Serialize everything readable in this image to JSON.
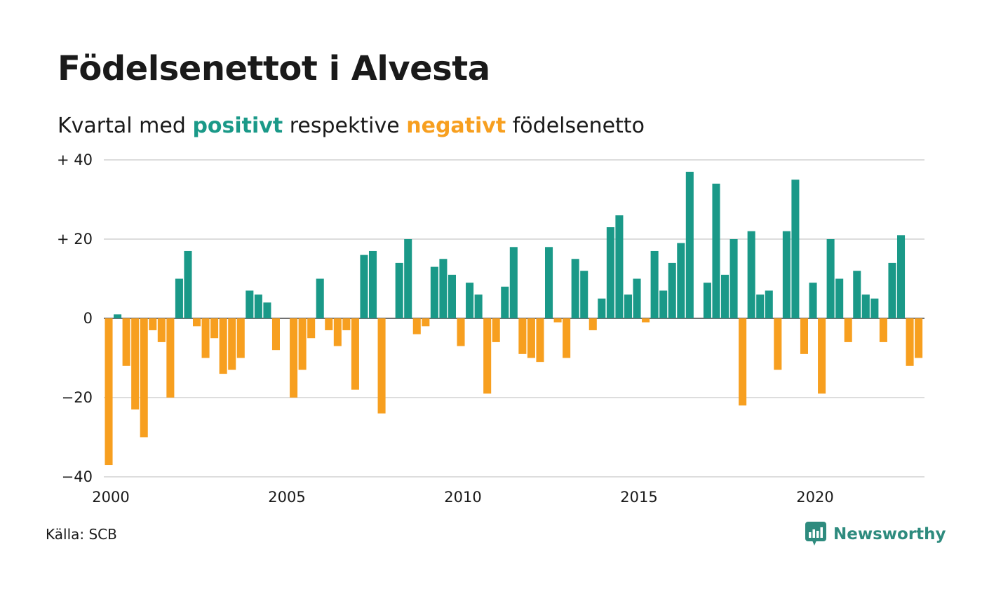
{
  "title": "Födelsenettot i Alvesta",
  "subtitle": {
    "prefix": "Kvartal med",
    "positive_word": "positivt",
    "middle": "respektive",
    "negative_word": "negativt",
    "suffix": "födelsenetto"
  },
  "colors": {
    "positive": "#1a9988",
    "negative": "#f79f1f",
    "grid": "#dddddd",
    "text": "#1a1a1a",
    "brand": "#2e8b7e"
  },
  "source": "Källa: SCB",
  "brand": {
    "name": "Newsworthy",
    "icon": "newsworthy-logo-icon"
  },
  "chart_data": {
    "type": "bar",
    "ylim": [
      -40,
      40
    ],
    "y_ticks": [
      {
        "value": 40,
        "label": "+ 40"
      },
      {
        "value": 20,
        "label": "+ 20"
      },
      {
        "value": 0,
        "label": "0"
      },
      {
        "value": -20,
        "label": "−20"
      },
      {
        "value": -40,
        "label": "−40"
      }
    ],
    "x_ticks": [
      {
        "value": 2000,
        "label": "2000"
      },
      {
        "value": 2005,
        "label": "2005"
      },
      {
        "value": 2010,
        "label": "2010"
      },
      {
        "value": 2015,
        "label": "2015"
      },
      {
        "value": 2020,
        "label": "2020"
      }
    ],
    "start_quarter": "2000-Q1",
    "grid": true,
    "values": [
      -37,
      1,
      -12,
      -23,
      -30,
      -3,
      -6,
      -20,
      10,
      17,
      -2,
      -10,
      -5,
      -14,
      -13,
      -10,
      7,
      6,
      4,
      -8,
      0,
      -20,
      -13,
      -5,
      10,
      -3,
      -7,
      -3,
      -18,
      16,
      17,
      -24,
      0,
      14,
      20,
      -4,
      -2,
      13,
      15,
      11,
      -7,
      9,
      6,
      -19,
      -6,
      8,
      18,
      -9,
      -10,
      -11,
      18,
      -1,
      -10,
      15,
      12,
      -3,
      5,
      23,
      26,
      6,
      10,
      -1,
      17,
      7,
      14,
      19,
      37,
      0,
      9,
      34,
      11,
      20,
      -22,
      22,
      6,
      7,
      -13,
      22,
      35,
      -9,
      9,
      -19,
      20,
      10,
      -6,
      12,
      6,
      5,
      -6,
      14,
      21,
      -12,
      -10
    ]
  }
}
